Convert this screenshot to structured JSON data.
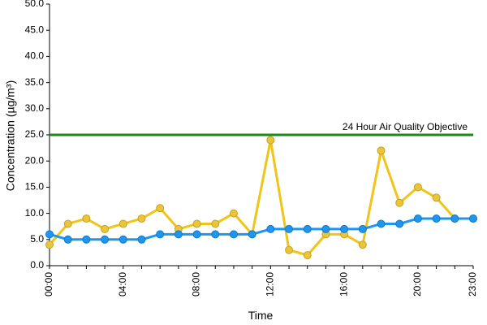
{
  "chart_data": {
    "type": "line",
    "xlabel": "Time",
    "ylabel": "Concentration (µg/m³)",
    "ylim": [
      0,
      50
    ],
    "y_ticks": [
      "0.0",
      "5.0",
      "10.0",
      "15.0",
      "20.0",
      "25.0",
      "30.0",
      "35.0",
      "40.0",
      "45.0",
      "50.0"
    ],
    "x_ticks": [
      "00:00",
      "04:00",
      "08:00",
      "12:00",
      "16:00",
      "20:00",
      "23:00"
    ],
    "x": [
      0,
      1,
      2,
      3,
      4,
      5,
      6,
      7,
      8,
      9,
      10,
      11,
      12,
      13,
      14,
      15,
      16,
      17,
      18,
      19,
      20,
      21,
      22,
      23
    ],
    "series": [
      {
        "color": "#f0c419",
        "marker_fill": "#e8c53a",
        "values": [
          4,
          8,
          9,
          7,
          8,
          9,
          11,
          7,
          8,
          8,
          10,
          6,
          24,
          3,
          2,
          6,
          6,
          4,
          22,
          12,
          15,
          13,
          9,
          9
        ]
      },
      {
        "color": "#1e96f0",
        "marker_fill": "#1e96f0",
        "values": [
          6,
          5,
          5,
          5,
          5,
          5,
          6,
          6,
          6,
          6,
          6,
          6,
          7,
          7,
          7,
          7,
          7,
          7,
          8,
          8,
          9,
          9,
          9,
          9
        ]
      }
    ],
    "reference_line": {
      "value": 25,
      "label": "24 Hour Air Quality Objective",
      "color": "#1a8a1a"
    },
    "grid": false,
    "legend": "none"
  }
}
